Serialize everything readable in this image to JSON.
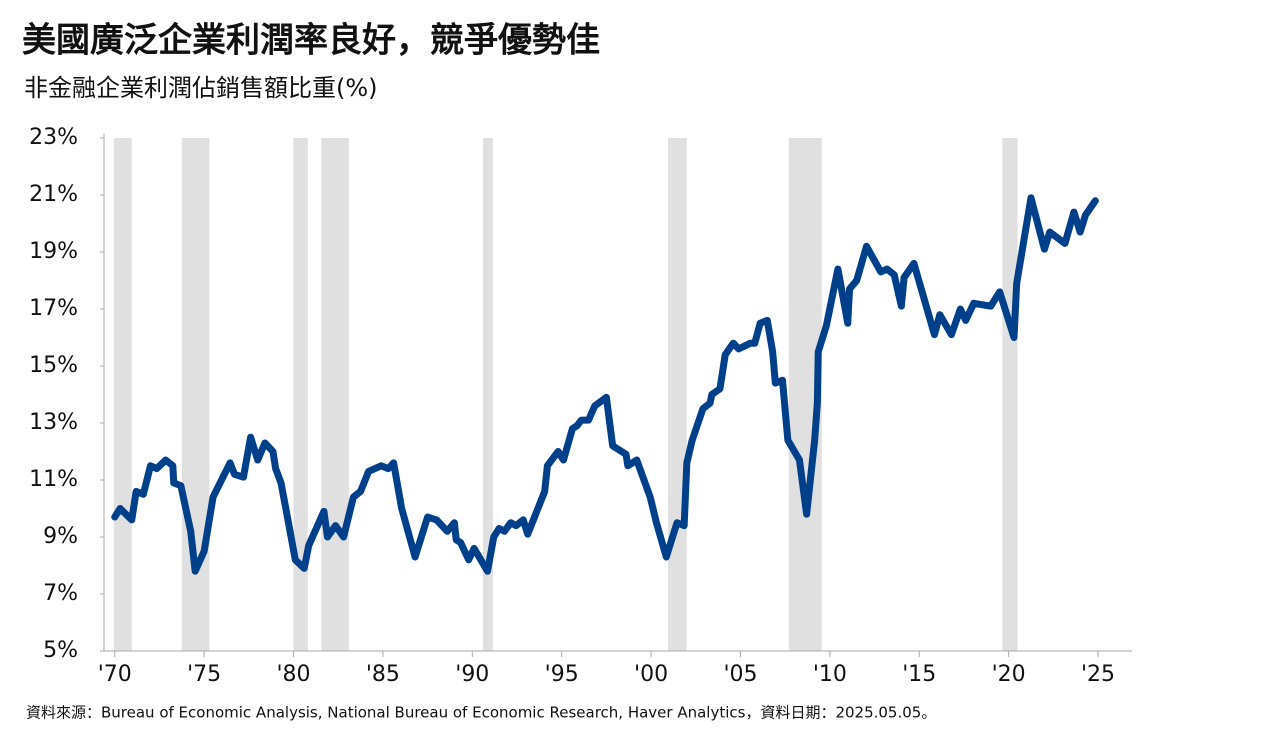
{
  "chart_data": {
    "type": "line",
    "title": "美國廣泛企業利潤率良好，競爭優勢佳",
    "subtitle": "非金融企業利潤佔銷售額比重(%)",
    "source": "資料來源：Bureau of Economic Analysis, National Bureau of Economic Research, Haver Analytics，資料日期：2025.05.05。",
    "x": [
      1970.0,
      1970.3,
      1970.95,
      1971.2,
      1971.6,
      1972.0,
      1972.35,
      1972.85,
      1973.25,
      1973.3,
      1973.7,
      1974.25,
      1974.5,
      1975.0,
      1975.5,
      1976.45,
      1976.7,
      1977.2,
      1977.6,
      1978.0,
      1978.4,
      1978.85,
      1979.0,
      1979.3,
      1979.6,
      1980.1,
      1980.6,
      1980.85,
      1981.7,
      1981.9,
      1982.35,
      1982.8,
      1983.35,
      1983.75,
      1984.2,
      1984.9,
      1985.3,
      1985.6,
      1986.05,
      1986.8,
      1987.5,
      1988.0,
      1988.6,
      1989.0,
      1989.1,
      1989.35,
      1989.8,
      1990.1,
      1990.85,
      1991.2,
      1991.5,
      1991.8,
      1992.15,
      1992.45,
      1992.85,
      1993.1,
      1994.05,
      1994.2,
      1994.8,
      1995.1,
      1995.6,
      1995.85,
      1996.1,
      1996.5,
      1996.85,
      1997.5,
      1997.85,
      1998.6,
      1998.7,
      1999.2,
      1999.95,
      2000.3,
      2000.85,
      2001.45,
      2001.85,
      2002.0,
      2002.3,
      2002.9,
      2003.3,
      2003.4,
      2003.85,
      2004.15,
      2004.6,
      2004.9,
      2005.55,
      2005.8,
      2006.1,
      2006.5,
      2006.8,
      2006.95,
      2007.35,
      2007.65,
      2008.3,
      2008.7,
      2009.15,
      2009.3,
      2009.35,
      2009.8,
      2010.45,
      2011.0,
      2011.1,
      2011.5,
      2012.05,
      2012.85,
      2013.2,
      2013.6,
      2014.0,
      2014.15,
      2014.7,
      2015.85,
      2016.15,
      2016.8,
      2017.3,
      2017.6,
      2018.05,
      2019.0,
      2019.5,
      2020.3,
      2020.45,
      2021.25,
      2022.0,
      2022.3,
      2023.15,
      2023.65,
      2024.0,
      2024.3,
      2024.85
    ],
    "series": [
      {
        "name": "非金融企業利潤佔銷售額比重",
        "color": "#00408a",
        "values": [
          9.7,
          10.0,
          9.6,
          10.6,
          10.5,
          11.5,
          11.4,
          11.7,
          11.5,
          10.9,
          10.8,
          9.2,
          7.8,
          8.5,
          10.4,
          11.6,
          11.2,
          11.1,
          12.5,
          11.7,
          12.3,
          12.0,
          11.4,
          10.9,
          9.9,
          8.2,
          7.9,
          8.7,
          9.9,
          9.0,
          9.4,
          9.0,
          10.4,
          10.6,
          11.3,
          11.5,
          11.4,
          11.6,
          10.0,
          8.3,
          9.7,
          9.6,
          9.2,
          9.5,
          8.9,
          8.8,
          8.2,
          8.6,
          7.8,
          9.0,
          9.3,
          9.2,
          9.5,
          9.4,
          9.6,
          9.1,
          10.6,
          11.5,
          12.0,
          11.7,
          12.8,
          12.9,
          13.1,
          13.1,
          13.6,
          13.9,
          12.2,
          11.9,
          11.5,
          11.7,
          10.4,
          9.5,
          8.3,
          9.5,
          9.4,
          11.6,
          12.4,
          13.5,
          13.7,
          14.0,
          14.2,
          15.4,
          15.8,
          15.6,
          15.8,
          15.8,
          16.5,
          16.6,
          15.5,
          14.4,
          14.5,
          12.4,
          11.7,
          9.8,
          12.4,
          13.7,
          15.5,
          16.4,
          18.4,
          16.5,
          17.7,
          18.0,
          19.2,
          18.3,
          18.4,
          18.2,
          17.1,
          18.1,
          18.6,
          16.1,
          16.8,
          16.1,
          17.0,
          16.6,
          17.2,
          17.1,
          17.6,
          16.0,
          17.9,
          20.9,
          19.1,
          19.7,
          19.3,
          20.4,
          19.7,
          20.3,
          20.8
        ]
      }
    ],
    "recession_periods": [
      [
        1969.95,
        1970.95
      ],
      [
        1973.75,
        1975.3
      ],
      [
        1980.0,
        1980.8
      ],
      [
        1981.55,
        1983.1
      ],
      [
        1990.6,
        1991.15
      ],
      [
        2000.95,
        2002.0
      ],
      [
        2007.7,
        2009.55
      ],
      [
        2019.65,
        2020.5
      ]
    ],
    "recession_color": "#e0e0e0",
    "xlim": [
      1969.4,
      2026.9
    ],
    "ylim": [
      5,
      23
    ],
    "xticks": [
      {
        "value": 1970,
        "label": "'70"
      },
      {
        "value": 1975,
        "label": "'75"
      },
      {
        "value": 1980,
        "label": "'80"
      },
      {
        "value": 1985,
        "label": "'85"
      },
      {
        "value": 1990,
        "label": "'90"
      },
      {
        "value": 1995,
        "label": "'95"
      },
      {
        "value": 2000,
        "label": "'00"
      },
      {
        "value": 2005,
        "label": "'05"
      },
      {
        "value": 2010,
        "label": "'10"
      },
      {
        "value": 2015,
        "label": "'15"
      },
      {
        "value": 2020,
        "label": "'20"
      },
      {
        "value": 2025,
        "label": "'25"
      }
    ],
    "yticks": [
      {
        "value": 5,
        "label": "5%"
      },
      {
        "value": 7,
        "label": "7%"
      },
      {
        "value": 9,
        "label": "9%"
      },
      {
        "value": 11,
        "label": "11%"
      },
      {
        "value": 13,
        "label": "13%"
      },
      {
        "value": 15,
        "label": "15%"
      },
      {
        "value": 17,
        "label": "17%"
      },
      {
        "value": 19,
        "label": "19%"
      },
      {
        "value": 21,
        "label": "21%"
      },
      {
        "value": 23,
        "label": "23%"
      }
    ]
  }
}
